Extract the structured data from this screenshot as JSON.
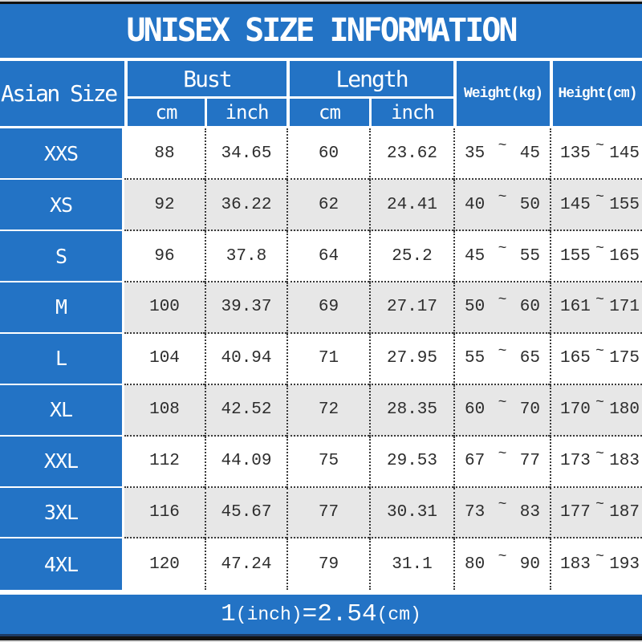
{
  "title": "UNISEX SIZE INFORMATION",
  "table": {
    "size_col_label": "Asian Size",
    "bust_label": "Bust",
    "length_label": "Length",
    "weight_label": "Weight(kg)",
    "height_label": "Height(cm)",
    "unit_cm": "cm",
    "unit_inch": "inch",
    "tilde": "~",
    "rows": [
      {
        "size": "XXS",
        "bust_cm": "88",
        "bust_in": "34.65",
        "length_cm": "60",
        "length_in": "23.62",
        "weight_min": "35",
        "weight_max": "45",
        "height_min": "135",
        "height_max": "145"
      },
      {
        "size": "XS",
        "bust_cm": "92",
        "bust_in": "36.22",
        "length_cm": "62",
        "length_in": "24.41",
        "weight_min": "40",
        "weight_max": "50",
        "height_min": "145",
        "height_max": "155"
      },
      {
        "size": "S",
        "bust_cm": "96",
        "bust_in": "37.8",
        "length_cm": "64",
        "length_in": "25.2",
        "weight_min": "45",
        "weight_max": "55",
        "height_min": "155",
        "height_max": "165"
      },
      {
        "size": "M",
        "bust_cm": "100",
        "bust_in": "39.37",
        "length_cm": "69",
        "length_in": "27.17",
        "weight_min": "50",
        "weight_max": "60",
        "height_min": "161",
        "height_max": "171"
      },
      {
        "size": "L",
        "bust_cm": "104",
        "bust_in": "40.94",
        "length_cm": "71",
        "length_in": "27.95",
        "weight_min": "55",
        "weight_max": "65",
        "height_min": "165",
        "height_max": "175"
      },
      {
        "size": "XL",
        "bust_cm": "108",
        "bust_in": "42.52",
        "length_cm": "72",
        "length_in": "28.35",
        "weight_min": "60",
        "weight_max": "70",
        "height_min": "170",
        "height_max": "180"
      },
      {
        "size": "XXL",
        "bust_cm": "112",
        "bust_in": "44.09",
        "length_cm": "75",
        "length_in": "29.53",
        "weight_min": "67",
        "weight_max": "77",
        "height_min": "173",
        "height_max": "183"
      },
      {
        "size": "3XL",
        "bust_cm": "116",
        "bust_in": "45.67",
        "length_cm": "77",
        "length_in": "30.31",
        "weight_min": "73",
        "weight_max": "83",
        "height_min": "177",
        "height_max": "187"
      },
      {
        "size": "4XL",
        "bust_cm": "120",
        "bust_in": "47.24",
        "length_cm": "79",
        "length_in": "31.1",
        "weight_min": "80",
        "weight_max": "90",
        "height_min": "183",
        "height_max": "193"
      }
    ]
  },
  "footer": {
    "num1": "1",
    "unit1": "(inch)",
    "equals": "=",
    "num2": "2.54",
    "unit2": "(cm)"
  },
  "colors": {
    "blue": "#2373c5",
    "row_alt_gray": "#e7e7e7",
    "navy_line": "#1d3c66",
    "bar_dark": "#121212"
  }
}
